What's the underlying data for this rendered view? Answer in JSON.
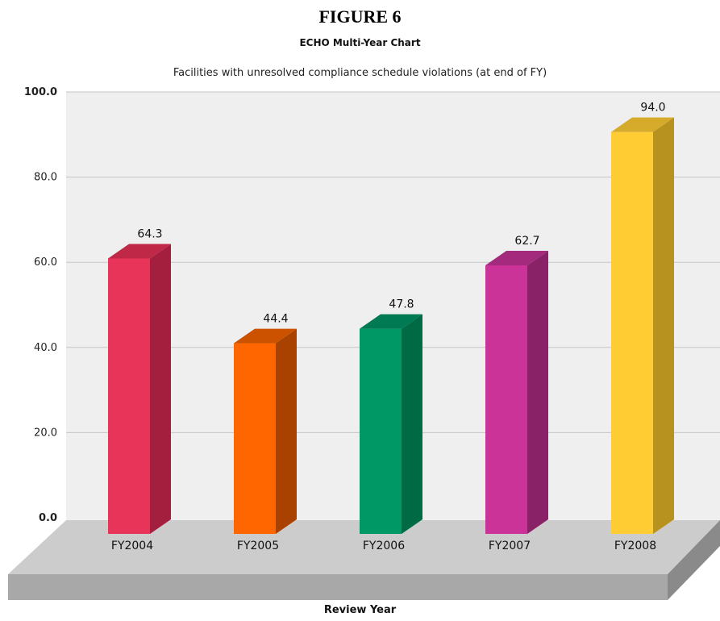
{
  "figure_label": "FIGURE 6",
  "chart_data": {
    "type": "bar",
    "title": "ECHO Multi-Year Chart",
    "subtitle": "Facilities with unresolved compliance schedule violations (at end of FY)",
    "xlabel": "Review Year",
    "ylabel": "",
    "categories": [
      "FY2004",
      "FY2005",
      "FY2006",
      "FY2007",
      "FY2008"
    ],
    "values": [
      64.3,
      44.4,
      47.8,
      62.7,
      94.0
    ],
    "value_labels": [
      "64.3",
      "44.4",
      "47.8",
      "62.7",
      "94.0"
    ],
    "ylim": [
      0,
      100
    ],
    "yticks": [
      "0.0",
      "20.0",
      "40.0",
      "60.0",
      "80.0",
      "100.0"
    ],
    "grid": true,
    "style": "3d",
    "colors": {
      "front": [
        "#e83458",
        "#ff6600",
        "#009966",
        "#cc3399",
        "#ffcc33"
      ],
      "side": [
        "#a31f3d",
        "#a94200",
        "#006a45",
        "#8a2268",
        "#b8921f"
      ],
      "top": [
        "#c02848",
        "#cc5200",
        "#007a52",
        "#a32a7c",
        "#d6aa2a"
      ],
      "wall": "#efefef",
      "floor": "#cccccc",
      "floor_front": "#a8a8a8",
      "floor_side": "#8a8a8a"
    }
  }
}
